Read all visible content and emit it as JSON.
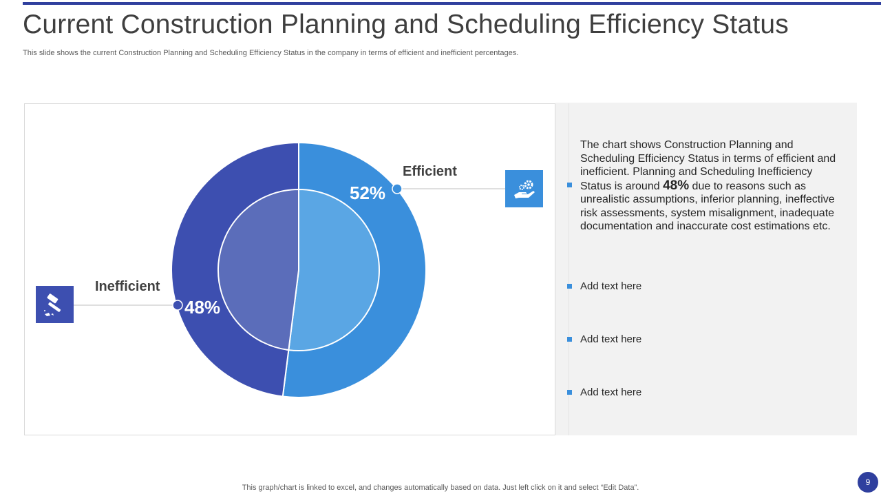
{
  "title": "Current Construction  Planning and Scheduling Efficiency Status",
  "subtitle": "This slide shows the current Construction Planning and Scheduling Efficiency Status in the company in terms of efficient and inefficient percentages.",
  "chart_data": {
    "type": "pie",
    "title": "",
    "categories": [
      "Efficient",
      "Inefficient"
    ],
    "values": [
      52,
      48
    ],
    "value_labels": [
      "52%",
      "48%"
    ],
    "colors": [
      "#3a8fdc",
      "#3d4fb0"
    ],
    "inner_colors": [
      "#5aa6e4",
      "#5b6dba"
    ],
    "legend": "none"
  },
  "icons": {
    "efficient": "gear-hand-icon",
    "inefficient": "hammer-icon"
  },
  "panel": {
    "desc_before": "The chart shows Construction Planning and Scheduling Efficiency Status in terms of efficient and inefficient. Planning and Scheduling Inefficiency Status is around ",
    "desc_highlight": "48%",
    "desc_after": " due to reasons such as unrealistic assumptions, inferior planning, ineffective risk assessments, system misalignment, inadequate documentation and inaccurate cost estimations etc.",
    "items": [
      "Add text here",
      "Add text here",
      "Add text here"
    ]
  },
  "footer": "This graph/chart is linked to excel,  and changes automatically based on data. Just left click on it and select “Edit Data”.",
  "page_number": "9"
}
